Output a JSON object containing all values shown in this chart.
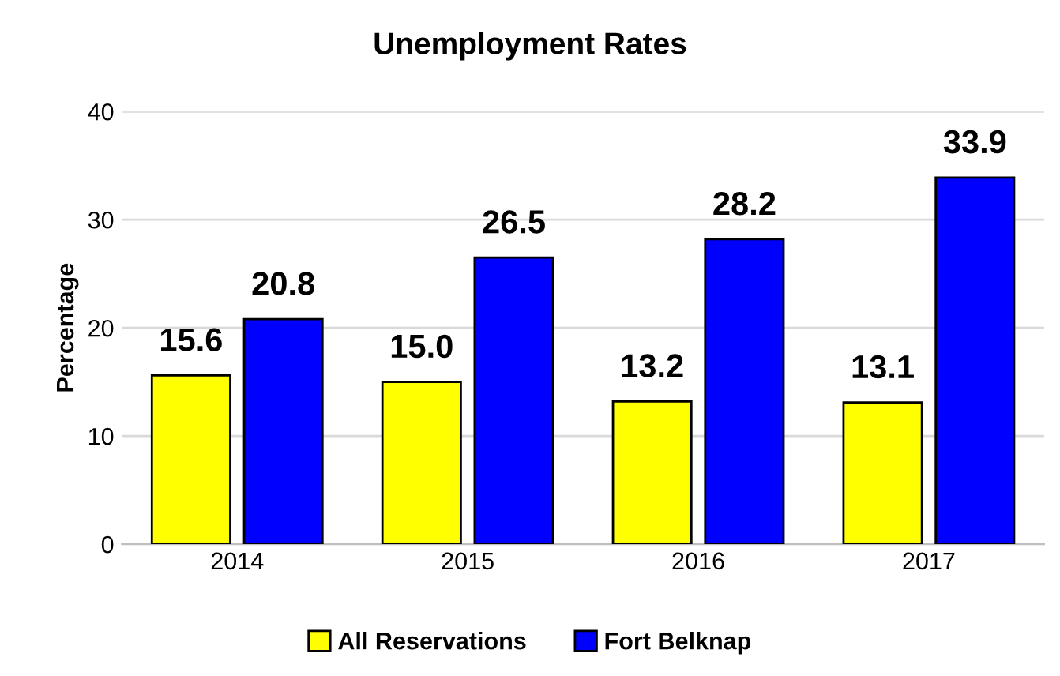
{
  "chart_data": {
    "type": "bar",
    "title": "Unemployment Rates",
    "ylabel": "Percentage",
    "categories": [
      "2014",
      "2015",
      "2016",
      "2017"
    ],
    "series": [
      {
        "name": "All Reservations",
        "color": "#ffff00",
        "values": [
          15.6,
          15.0,
          13.2,
          13.1
        ],
        "value_labels": [
          "15.6",
          "15.0",
          "13.2",
          "13.1"
        ]
      },
      {
        "name": "Fort Belknap",
        "color": "#0000ff",
        "values": [
          20.8,
          26.5,
          28.2,
          33.9
        ],
        "value_labels": [
          "20.8",
          "26.5",
          "28.2",
          "33.9"
        ]
      }
    ],
    "ylim": [
      0,
      40
    ],
    "yticks": [
      0,
      10,
      20,
      30,
      40
    ],
    "grid": "y",
    "legend": "bottom"
  }
}
